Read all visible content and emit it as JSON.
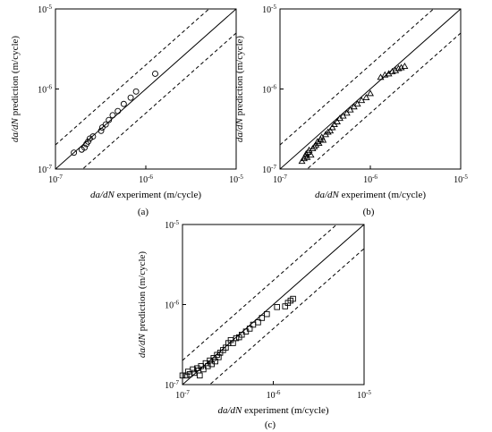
{
  "chart_data": [
    {
      "type": "scatter",
      "panel_label": "(a)",
      "xlabel_italic": "da/dN",
      "xlabel_rest": " experiment (m/cycle)",
      "ylabel_italic": "da/dN",
      "ylabel_rest": " prediction (m/cycle)",
      "xlim": [
        1e-07,
        1e-05
      ],
      "ylim": [
        1e-07,
        1e-05
      ],
      "log_scale": true,
      "tick_labels": {
        "min": "10-7",
        "mid": "10-6",
        "max": "10-5"
      },
      "reference_lines": [
        "y = x (solid)",
        "y = 2x (dashed)",
        "y = x/2 (dashed)"
      ],
      "marker": "circle",
      "points": [
        {
          "x": 1.6e-07,
          "y": 1.6e-07
        },
        {
          "x": 1.95e-07,
          "y": 1.75e-07
        },
        {
          "x": 2.1e-07,
          "y": 1.85e-07
        },
        {
          "x": 2.2e-07,
          "y": 2.05e-07
        },
        {
          "x": 2.3e-07,
          "y": 2.2e-07
        },
        {
          "x": 2.4e-07,
          "y": 2.4e-07
        },
        {
          "x": 2.6e-07,
          "y": 2.55e-07
        },
        {
          "x": 3.2e-07,
          "y": 3e-07
        },
        {
          "x": 3.3e-07,
          "y": 3.3e-07
        },
        {
          "x": 3.6e-07,
          "y": 3.6e-07
        },
        {
          "x": 3.9e-07,
          "y": 4.1e-07
        },
        {
          "x": 4.3e-07,
          "y": 4.7e-07
        },
        {
          "x": 4.9e-07,
          "y": 5.3e-07
        },
        {
          "x": 5.7e-07,
          "y": 6.5e-07
        },
        {
          "x": 6.8e-07,
          "y": 7.8e-07
        },
        {
          "x": 7.8e-07,
          "y": 9.3e-07
        },
        {
          "x": 1.27e-06,
          "y": 1.55e-06
        }
      ]
    },
    {
      "type": "scatter",
      "panel_label": "(b)",
      "xlabel_italic": "da/dN",
      "xlabel_rest": " experiment (m/cycle)",
      "ylabel_italic": "da/dN",
      "ylabel_rest": " prediction (m/cycle)",
      "xlim": [
        1e-07,
        1e-05
      ],
      "ylim": [
        1e-07,
        1e-05
      ],
      "log_scale": true,
      "tick_labels": {
        "min": "10-7",
        "mid": "10-6",
        "max": "10-5"
      },
      "reference_lines": [
        "y = x (solid)",
        "y = 2x (dashed)",
        "y = x/2 (dashed)"
      ],
      "marker": "triangle",
      "points": [
        {
          "x": 1.75e-07,
          "y": 1.25e-07
        },
        {
          "x": 1.85e-07,
          "y": 1.35e-07
        },
        {
          "x": 1.9e-07,
          "y": 1.45e-07
        },
        {
          "x": 1.95e-07,
          "y": 1.55e-07
        },
        {
          "x": 2e-07,
          "y": 1.4e-07
        },
        {
          "x": 2.05e-07,
          "y": 1.62e-07
        },
        {
          "x": 2.1e-07,
          "y": 1.72e-07
        },
        {
          "x": 2.2e-07,
          "y": 1.5e-07
        },
        {
          "x": 2.3e-07,
          "y": 1.8e-07
        },
        {
          "x": 2.4e-07,
          "y": 1.9e-07
        },
        {
          "x": 2.5e-07,
          "y": 2e-07
        },
        {
          "x": 2.6e-07,
          "y": 2.2e-07
        },
        {
          "x": 2.7e-07,
          "y": 2.1e-07
        },
        {
          "x": 2.8e-07,
          "y": 2.35e-07
        },
        {
          "x": 2.9e-07,
          "y": 2.5e-07
        },
        {
          "x": 3e-07,
          "y": 2.3e-07
        },
        {
          "x": 3.2e-07,
          "y": 2.7e-07
        },
        {
          "x": 3.4e-07,
          "y": 2.9e-07
        },
        {
          "x": 3.6e-07,
          "y": 3e-07
        },
        {
          "x": 3.8e-07,
          "y": 3.3e-07
        },
        {
          "x": 4e-07,
          "y": 3.6e-07
        },
        {
          "x": 4.3e-07,
          "y": 3.9e-07
        },
        {
          "x": 4.6e-07,
          "y": 4.3e-07
        },
        {
          "x": 5e-07,
          "y": 4.6e-07
        },
        {
          "x": 5.5e-07,
          "y": 5e-07
        },
        {
          "x": 6e-07,
          "y": 5.5e-07
        },
        {
          "x": 6.6e-07,
          "y": 6e-07
        },
        {
          "x": 7.2e-07,
          "y": 6.5e-07
        },
        {
          "x": 8e-07,
          "y": 7.2e-07
        },
        {
          "x": 9e-07,
          "y": 7.8e-07
        },
        {
          "x": 1e-06,
          "y": 8.8e-07
        },
        {
          "x": 1.3e-06,
          "y": 1.4e-06
        },
        {
          "x": 1.45e-06,
          "y": 1.5e-06
        },
        {
          "x": 1.6e-06,
          "y": 1.55e-06
        },
        {
          "x": 1.75e-06,
          "y": 1.65e-06
        },
        {
          "x": 1.9e-06,
          "y": 1.7e-06
        },
        {
          "x": 2.05e-06,
          "y": 1.8e-06
        },
        {
          "x": 2.2e-06,
          "y": 1.85e-06
        },
        {
          "x": 2.4e-06,
          "y": 1.92e-06
        }
      ]
    },
    {
      "type": "scatter",
      "panel_label": "(c)",
      "xlabel_italic": "da/dN",
      "xlabel_rest": " experiment (m/cycle)",
      "ylabel_italic": "da/dN",
      "ylabel_rest": " prediction (m/cycle)",
      "xlim": [
        1e-07,
        1e-05
      ],
      "ylim": [
        1e-07,
        1e-05
      ],
      "log_scale": true,
      "tick_labels": {
        "min": "10-7",
        "mid": "10-6",
        "max": "10-5"
      },
      "reference_lines": [
        "y = x (solid)",
        "y = 2x (dashed)",
        "y = x/2 (dashed)"
      ],
      "marker": "square",
      "points": [
        {
          "x": 1e-07,
          "y": 1.3e-07
        },
        {
          "x": 1.1e-07,
          "y": 1.3e-07
        },
        {
          "x": 1.15e-07,
          "y": 1.45e-07
        },
        {
          "x": 1.2e-07,
          "y": 1.35e-07
        },
        {
          "x": 1.3e-07,
          "y": 1.55e-07
        },
        {
          "x": 1.35e-07,
          "y": 1.4e-07
        },
        {
          "x": 1.45e-07,
          "y": 1.6e-07
        },
        {
          "x": 1.5e-07,
          "y": 1.5e-07
        },
        {
          "x": 1.55e-07,
          "y": 1.3e-07
        },
        {
          "x": 1.6e-07,
          "y": 1.7e-07
        },
        {
          "x": 1.7e-07,
          "y": 1.55e-07
        },
        {
          "x": 1.8e-07,
          "y": 1.85e-07
        },
        {
          "x": 1.9e-07,
          "y": 1.7e-07
        },
        {
          "x": 2e-07,
          "y": 2e-07
        },
        {
          "x": 2.1e-07,
          "y": 1.8e-07
        },
        {
          "x": 2.2e-07,
          "y": 2.15e-07
        },
        {
          "x": 2.3e-07,
          "y": 1.95e-07
        },
        {
          "x": 2.4e-07,
          "y": 2.35e-07
        },
        {
          "x": 2.5e-07,
          "y": 2.2e-07
        },
        {
          "x": 2.6e-07,
          "y": 2.5e-07
        },
        {
          "x": 2.8e-07,
          "y": 2.7e-07
        },
        {
          "x": 3e-07,
          "y": 2.9e-07
        },
        {
          "x": 3.2e-07,
          "y": 3.3e-07
        },
        {
          "x": 3.4e-07,
          "y": 3.6e-07
        },
        {
          "x": 3.6e-07,
          "y": 3.3e-07
        },
        {
          "x": 3.9e-07,
          "y": 3.8e-07
        },
        {
          "x": 4.2e-07,
          "y": 3.9e-07
        },
        {
          "x": 4.5e-07,
          "y": 4.2e-07
        },
        {
          "x": 5e-07,
          "y": 4.6e-07
        },
        {
          "x": 5.5e-07,
          "y": 5e-07
        },
        {
          "x": 6e-07,
          "y": 5.6e-07
        },
        {
          "x": 6.8e-07,
          "y": 6e-07
        },
        {
          "x": 7.5e-07,
          "y": 6.8e-07
        },
        {
          "x": 8.5e-07,
          "y": 7.6e-07
        },
        {
          "x": 1.1e-06,
          "y": 9.3e-07
        },
        {
          "x": 1.35e-06,
          "y": 9.5e-07
        },
        {
          "x": 1.45e-06,
          "y": 1.05e-06
        },
        {
          "x": 1.55e-06,
          "y": 1.12e-06
        },
        {
          "x": 1.65e-06,
          "y": 1.18e-06
        }
      ]
    }
  ]
}
